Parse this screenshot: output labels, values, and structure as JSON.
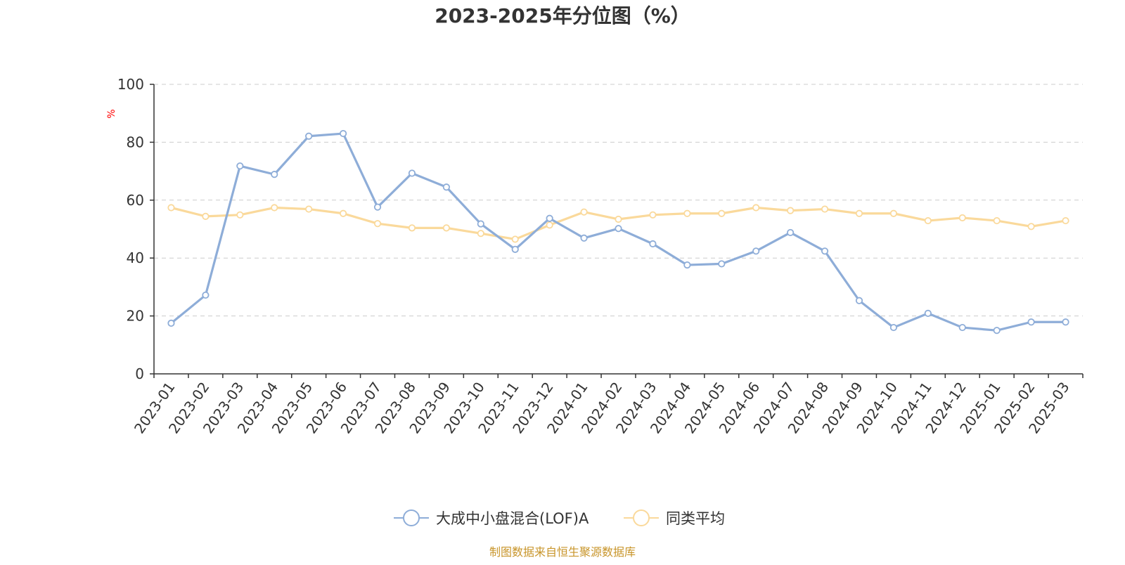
{
  "chart_data": {
    "type": "line",
    "title": "2023-2025年分位图（%）",
    "ylabel": "%",
    "xlabel": "",
    "ylim": [
      0,
      100
    ],
    "yticks": [
      "0",
      "20",
      "40",
      "60",
      "80",
      "100"
    ],
    "grid": true,
    "legend_position": "bottom-center",
    "categories": [
      "2023-01",
      "2023-02",
      "2023-03",
      "2023-04",
      "2023-05",
      "2023-06",
      "2023-07",
      "2023-08",
      "2023-09",
      "2023-10",
      "2023-11",
      "2023-12",
      "2024-01",
      "2024-02",
      "2024-03",
      "2024-04",
      "2024-05",
      "2024-06",
      "2024-07",
      "2024-08",
      "2024-09",
      "2024-10",
      "2024-11",
      "2024-12",
      "2025-01",
      "2025-02",
      "2025-03"
    ],
    "series": [
      {
        "name": "大成中小盘混合(LOF)A",
        "color": "#8eadd8",
        "values": [
          17.5,
          27.2,
          71.8,
          68.9,
          82.1,
          83.0,
          57.6,
          69.3,
          64.5,
          51.8,
          43.0,
          53.7,
          46.9,
          50.2,
          44.9,
          37.6,
          38.0,
          42.4,
          48.8,
          42.4,
          25.3,
          16.0,
          20.9,
          16.0,
          15.0,
          17.9,
          17.9
        ]
      },
      {
        "name": "同类平均",
        "color": "#fad99b",
        "values": [
          57.4,
          54.4,
          54.9,
          57.4,
          56.9,
          55.4,
          51.9,
          50.4,
          50.4,
          48.5,
          46.5,
          51.4,
          55.9,
          53.4,
          54.9,
          55.4,
          55.4,
          57.4,
          56.4,
          56.9,
          55.4,
          55.4,
          52.9,
          53.9,
          52.9,
          50.9,
          52.9
        ]
      }
    ]
  },
  "footer": {
    "source": "制图数据来自恒生聚源数据库"
  }
}
